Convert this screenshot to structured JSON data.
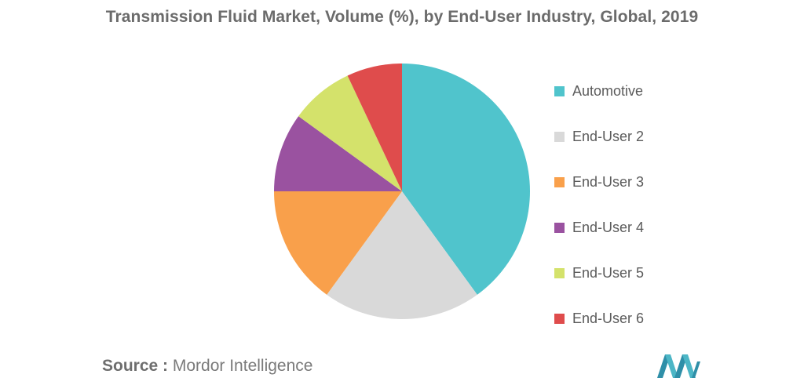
{
  "chart_data": {
    "type": "pie",
    "title": "Transmission Fluid Market, Volume (%), by End-User Industry, Global, 2019",
    "slices": [
      {
        "label": "Automotive",
        "value": 40,
        "color": "#50c4cc"
      },
      {
        "label": "End-User 2",
        "value": 20,
        "color": "#d9d9d9"
      },
      {
        "label": "End-User 3",
        "value": 15,
        "color": "#f9a04b"
      },
      {
        "label": "End-User 4",
        "value": 10,
        "color": "#9a52a0"
      },
      {
        "label": "End-User 5",
        "value": 8,
        "color": "#d4e26b"
      },
      {
        "label": "End-User 6",
        "value": 7,
        "color": "#df4c4c"
      }
    ],
    "legend_position": "right"
  },
  "source": {
    "label": "Source :",
    "text": "Mordor Intelligence"
  },
  "logo": {
    "icon": "mordor-intelligence-logo",
    "color": "#4cb6c6"
  }
}
